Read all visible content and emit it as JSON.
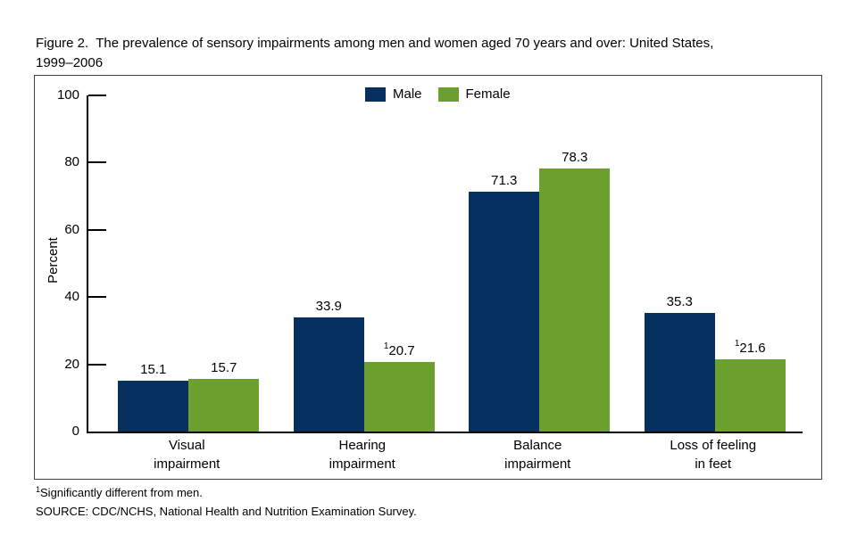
{
  "chart_data": {
    "type": "bar",
    "figure_title": "Figure 2.  The prevalence of sensory impairments among men and women aged 70 years and over: United States,\n1999–2006",
    "categories": [
      "Visual\nimpairment",
      "Hearing\nimpairment",
      "Balance\nimpairment",
      "Loss of feeling\nin feet"
    ],
    "series": [
      {
        "name": "Male",
        "color": "#06305f",
        "values": [
          15.1,
          33.9,
          71.3,
          35.3
        ],
        "footnote_flags": [
          false,
          false,
          false,
          false
        ]
      },
      {
        "name": "Female",
        "color": "#6ba02e",
        "values": [
          15.7,
          20.7,
          78.3,
          21.6
        ],
        "footnote_flags": [
          false,
          true,
          false,
          true
        ]
      }
    ],
    "xlabel": "",
    "ylabel": "Percent",
    "ylim": [
      0,
      100
    ],
    "yticks": [
      0,
      20,
      40,
      60,
      80,
      100
    ],
    "grid": false,
    "legend_position": "top-center",
    "value_labels": true,
    "footnote": {
      "marker": "1",
      "text": "Significantly different from men."
    },
    "source": "SOURCE: CDC/NCHS, National Health and Nutrition Examination Survey."
  }
}
